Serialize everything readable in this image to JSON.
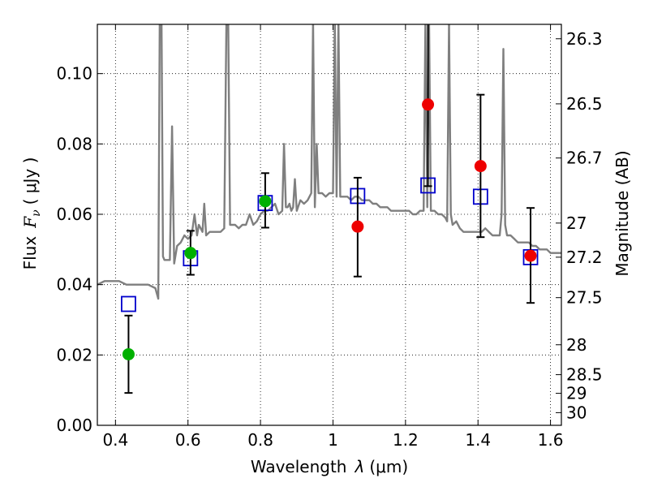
{
  "chart_data": {
    "type": "scatter",
    "xlabel_text": "Wavelength",
    "xlabel_symbol": "λ",
    "xlabel_unit": "(μm)",
    "ylabel_text": "Flux",
    "ylabel_symbol": "F",
    "ylabel_sub": "ν",
    "ylabel_unit": "( μJy )",
    "y2label": "Magnitude (AB)",
    "xlim": [
      0.35,
      1.63
    ],
    "ylim": [
      0.0,
      0.114
    ],
    "grid": true,
    "xticks": [
      0.4,
      0.6,
      0.8,
      1.0,
      1.2,
      1.4,
      1.6
    ],
    "xtick_labels": [
      "0.4",
      "0.6",
      "0.8",
      "1",
      "1.2",
      "1.4",
      "1.6"
    ],
    "yticks": [
      0.0,
      0.02,
      0.04,
      0.06,
      0.08,
      0.1
    ],
    "ytick_labels": [
      "0.00",
      "0.02",
      "0.04",
      "0.06",
      "0.08",
      "0.10"
    ],
    "y2ticks": [
      {
        "flux": 0.1099,
        "label": "26.3"
      },
      {
        "flux": 0.0914,
        "label": "26.5"
      },
      {
        "flux": 0.076,
        "label": "26.7"
      },
      {
        "flux": 0.0575,
        "label": "27"
      },
      {
        "flux": 0.0478,
        "label": "27.2"
      },
      {
        "flux": 0.0363,
        "label": "27.5"
      },
      {
        "flux": 0.0229,
        "label": "28"
      },
      {
        "flux": 0.0144,
        "label": "28.5"
      },
      {
        "flux": 0.0091,
        "label": "29"
      },
      {
        "flux": 0.0036,
        "label": "30"
      }
    ],
    "series": [
      {
        "name": "model-spectrum",
        "kind": "line",
        "color": "#7f7f7f",
        "x": [
          0.35,
          0.37,
          0.39,
          0.41,
          0.43,
          0.45,
          0.47,
          0.49,
          0.51,
          0.518,
          0.522,
          0.527,
          0.531,
          0.535,
          0.54,
          0.55,
          0.556,
          0.562,
          0.57,
          0.58,
          0.59,
          0.6,
          0.61,
          0.618,
          0.625,
          0.63,
          0.635,
          0.64,
          0.645,
          0.65,
          0.66,
          0.67,
          0.68,
          0.69,
          0.7,
          0.706,
          0.711,
          0.716,
          0.72,
          0.73,
          0.74,
          0.75,
          0.76,
          0.77,
          0.78,
          0.79,
          0.8,
          0.81,
          0.82,
          0.83,
          0.84,
          0.85,
          0.86,
          0.865,
          0.87,
          0.875,
          0.88,
          0.885,
          0.89,
          0.895,
          0.9,
          0.91,
          0.92,
          0.93,
          0.94,
          0.945,
          0.95,
          0.955,
          0.96,
          0.97,
          0.98,
          0.99,
          1.0,
          1.005,
          1.01,
          1.015,
          1.02,
          1.03,
          1.04,
          1.05,
          1.06,
          1.07,
          1.08,
          1.09,
          1.1,
          1.11,
          1.12,
          1.13,
          1.14,
          1.15,
          1.16,
          1.17,
          1.18,
          1.19,
          1.2,
          1.21,
          1.22,
          1.23,
          1.24,
          1.25,
          1.255,
          1.26,
          1.265,
          1.27,
          1.28,
          1.29,
          1.3,
          1.31,
          1.315,
          1.32,
          1.325,
          1.33,
          1.34,
          1.35,
          1.36,
          1.37,
          1.38,
          1.39,
          1.4,
          1.41,
          1.42,
          1.43,
          1.44,
          1.45,
          1.46,
          1.465,
          1.47,
          1.475,
          1.48,
          1.49,
          1.5,
          1.51,
          1.52,
          1.53,
          1.54,
          1.55,
          1.56,
          1.57,
          1.58,
          1.59,
          1.6,
          1.61,
          1.62,
          1.63
        ],
        "y": [
          0.04,
          0.041,
          0.041,
          0.041,
          0.04,
          0.04,
          0.04,
          0.04,
          0.039,
          0.036,
          0.115,
          0.115,
          0.048,
          0.047,
          0.047,
          0.047,
          0.085,
          0.046,
          0.051,
          0.052,
          0.054,
          0.053,
          0.054,
          0.06,
          0.054,
          0.057,
          0.056,
          0.055,
          0.063,
          0.054,
          0.055,
          0.055,
          0.055,
          0.055,
          0.056,
          0.115,
          0.115,
          0.057,
          0.057,
          0.057,
          0.056,
          0.057,
          0.057,
          0.06,
          0.057,
          0.058,
          0.06,
          0.061,
          0.061,
          0.062,
          0.063,
          0.06,
          0.061,
          0.08,
          0.062,
          0.062,
          0.063,
          0.061,
          0.062,
          0.07,
          0.061,
          0.064,
          0.063,
          0.064,
          0.066,
          0.115,
          0.062,
          0.08,
          0.066,
          0.066,
          0.065,
          0.066,
          0.066,
          0.115,
          0.065,
          0.115,
          0.065,
          0.065,
          0.065,
          0.064,
          0.065,
          0.065,
          0.064,
          0.064,
          0.064,
          0.063,
          0.063,
          0.062,
          0.062,
          0.062,
          0.061,
          0.061,
          0.061,
          0.061,
          0.061,
          0.061,
          0.06,
          0.06,
          0.061,
          0.061,
          0.115,
          0.062,
          0.115,
          0.061,
          0.061,
          0.06,
          0.06,
          0.059,
          0.058,
          0.115,
          0.06,
          0.057,
          0.058,
          0.056,
          0.055,
          0.055,
          0.055,
          0.055,
          0.055,
          0.055,
          0.056,
          0.055,
          0.054,
          0.054,
          0.054,
          0.06,
          0.107,
          0.057,
          0.054,
          0.054,
          0.053,
          0.052,
          0.052,
          0.052,
          0.052,
          0.051,
          0.051,
          0.05,
          0.05,
          0.05,
          0.049,
          0.049,
          0.049,
          0.049
        ]
      },
      {
        "name": "model-photometry",
        "kind": "open-square",
        "color": "#0000cc",
        "x": [
          0.436,
          0.607,
          0.813,
          1.068,
          1.262,
          1.407,
          1.545
        ],
        "y": [
          0.0345,
          0.0475,
          0.0632,
          0.0652,
          0.0682,
          0.065,
          0.0478
        ]
      },
      {
        "name": "observed-green",
        "kind": "filled-circle",
        "color": "#00b000",
        "x": [
          0.436,
          0.607,
          0.813
        ],
        "y": [
          0.0202,
          0.049,
          0.0637
        ],
        "err_low": [
          0.0092,
          0.0428,
          0.0562
        ],
        "err_high": [
          0.0312,
          0.0553,
          0.0717
        ]
      },
      {
        "name": "observed-red",
        "kind": "filled-circle",
        "color": "#ee0000",
        "x": [
          1.068,
          1.262,
          1.407,
          1.545
        ],
        "y": [
          0.0565,
          0.0912,
          0.0737,
          0.0482
        ],
        "err_low": [
          0.0423,
          0.068,
          0.0535,
          0.0348
        ],
        "err_high": [
          0.0704,
          0.115,
          0.094,
          0.0618
        ]
      }
    ]
  }
}
